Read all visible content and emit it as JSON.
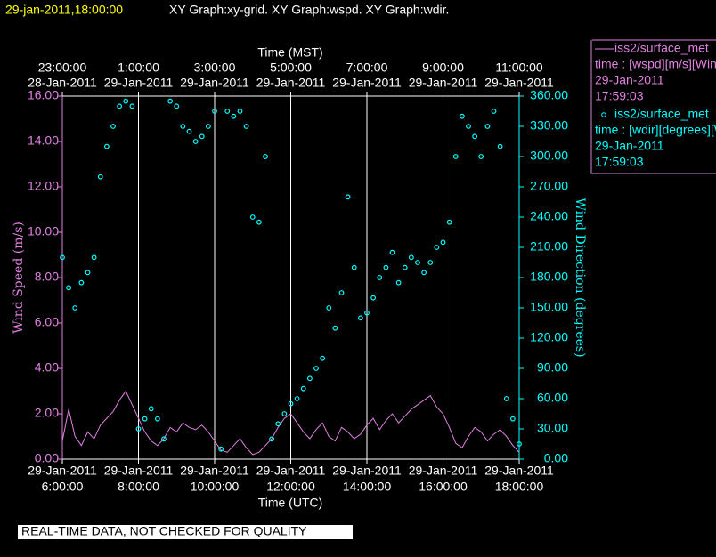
{
  "header": {
    "title_time": "29-jan-2011,18:00:00",
    "title_rest": "XY Graph:xy-grid.  XY Graph:wspd.  XY Graph:wdir."
  },
  "legend": {
    "entries": [
      {
        "name": "iss2/surface_met",
        "lines": [
          "time : [wspd][m/s][Wind",
          "29-Jan-2011",
          "17:59:03"
        ],
        "color": "#e080e0"
      },
      {
        "name": "iss2/surface_met",
        "lines": [
          "time : [wdir][degrees][W",
          "29-Jan-2011",
          "17:59:03"
        ],
        "color": "#00ffff"
      }
    ]
  },
  "footer": "REAL-TIME DATA, NOT CHECKED FOR QUALITY",
  "chart_data": {
    "type": "line",
    "xlabel": "Time (UTC)",
    "x2label": "Time (MST)",
    "ylabel": "Wind Speed (m/s)",
    "y2label": "Wind Direction (degrees)",
    "xlim": [
      "2011-01-29T06:00",
      "2011-01-29T18:00"
    ],
    "xticks": [
      {
        "value": "2011-01-29T06:00",
        "label": [
          "29-Jan-2011",
          "6:00:00"
        ]
      },
      {
        "value": "2011-01-29T08:00",
        "label": [
          "29-Jan-2011",
          "8:00:00"
        ]
      },
      {
        "value": "2011-01-29T10:00",
        "label": [
          "29-Jan-2011",
          "10:00:00"
        ]
      },
      {
        "value": "2011-01-29T12:00",
        "label": [
          "29-Jan-2011",
          "12:00:00"
        ]
      },
      {
        "value": "2011-01-29T14:00",
        "label": [
          "29-Jan-2011",
          "14:00:00"
        ]
      },
      {
        "value": "2011-01-29T16:00",
        "label": [
          "29-Jan-2011",
          "16:00:00"
        ]
      },
      {
        "value": "2011-01-29T18:00",
        "label": [
          "29-Jan-2011",
          "18:00:00"
        ]
      }
    ],
    "x2ticks": [
      {
        "value": "2011-01-29T06:00",
        "label": [
          "23:00:00",
          "28-Jan-2011"
        ]
      },
      {
        "value": "2011-01-29T08:00",
        "label": [
          "1:00:00",
          "29-Jan-2011"
        ]
      },
      {
        "value": "2011-01-29T10:00",
        "label": [
          "3:00:00",
          "29-Jan-2011"
        ]
      },
      {
        "value": "2011-01-29T12:00",
        "label": [
          "5:00:00",
          "29-Jan-2011"
        ]
      },
      {
        "value": "2011-01-29T14:00",
        "label": [
          "7:00:00",
          "29-Jan-2011"
        ]
      },
      {
        "value": "2011-01-29T16:00",
        "label": [
          "9:00:00",
          "29-Jan-2011"
        ]
      },
      {
        "value": "2011-01-29T18:00",
        "label": [
          "11:00:00",
          "29-Jan-2011"
        ]
      }
    ],
    "ylim": [
      0,
      16
    ],
    "yticks": [
      {
        "value": 0,
        "label": "0.00"
      },
      {
        "value": 2,
        "label": "2.00"
      },
      {
        "value": 4,
        "label": "4.00"
      },
      {
        "value": 6,
        "label": "6.00"
      },
      {
        "value": 8,
        "label": "8.00"
      },
      {
        "value": 10,
        "label": "10.00"
      },
      {
        "value": 12,
        "label": "12.00"
      },
      {
        "value": 14,
        "label": "14.00"
      },
      {
        "value": 16,
        "label": "16.00"
      }
    ],
    "y2lim": [
      0,
      360
    ],
    "y2ticks": [
      {
        "value": 0,
        "label": "0.00"
      },
      {
        "value": 30,
        "label": "30.00"
      },
      {
        "value": 60,
        "label": "60.00"
      },
      {
        "value": 90,
        "label": "90.00"
      },
      {
        "value": 120,
        "label": "120.00"
      },
      {
        "value": 150,
        "label": "150.00"
      },
      {
        "value": 180,
        "label": "180.00"
      },
      {
        "value": 210,
        "label": "210.00"
      },
      {
        "value": 240,
        "label": "240.00"
      },
      {
        "value": 270,
        "label": "270.00"
      },
      {
        "value": 300,
        "label": "300.00"
      },
      {
        "value": 330,
        "label": "330.00"
      },
      {
        "value": 360,
        "label": "360.00"
      }
    ],
    "grid": true,
    "x": [
      "2011-01-29T06:00",
      "2011-01-29T06:10",
      "2011-01-29T06:20",
      "2011-01-29T06:30",
      "2011-01-29T06:40",
      "2011-01-29T06:50",
      "2011-01-29T07:00",
      "2011-01-29T07:10",
      "2011-01-29T07:20",
      "2011-01-29T07:30",
      "2011-01-29T07:40",
      "2011-01-29T07:50",
      "2011-01-29T08:00",
      "2011-01-29T08:10",
      "2011-01-29T08:20",
      "2011-01-29T08:30",
      "2011-01-29T08:40",
      "2011-01-29T08:50",
      "2011-01-29T09:00",
      "2011-01-29T09:10",
      "2011-01-29T09:20",
      "2011-01-29T09:30",
      "2011-01-29T09:40",
      "2011-01-29T09:50",
      "2011-01-29T10:00",
      "2011-01-29T10:10",
      "2011-01-29T10:20",
      "2011-01-29T10:30",
      "2011-01-29T10:40",
      "2011-01-29T10:50",
      "2011-01-29T11:00",
      "2011-01-29T11:10",
      "2011-01-29T11:20",
      "2011-01-29T11:30",
      "2011-01-29T11:40",
      "2011-01-29T11:50",
      "2011-01-29T12:00",
      "2011-01-29T12:10",
      "2011-01-29T12:20",
      "2011-01-29T12:30",
      "2011-01-29T12:40",
      "2011-01-29T12:50",
      "2011-01-29T13:00",
      "2011-01-29T13:10",
      "2011-01-29T13:20",
      "2011-01-29T13:30",
      "2011-01-29T13:40",
      "2011-01-29T13:50",
      "2011-01-29T14:00",
      "2011-01-29T14:10",
      "2011-01-29T14:20",
      "2011-01-29T14:30",
      "2011-01-29T14:40",
      "2011-01-29T14:50",
      "2011-01-29T15:00",
      "2011-01-29T15:10",
      "2011-01-29T15:20",
      "2011-01-29T15:30",
      "2011-01-29T15:40",
      "2011-01-29T15:50",
      "2011-01-29T16:00",
      "2011-01-29T16:10",
      "2011-01-29T16:20",
      "2011-01-29T16:30",
      "2011-01-29T16:40",
      "2011-01-29T16:50",
      "2011-01-29T17:00",
      "2011-01-29T17:10",
      "2011-01-29T17:20",
      "2011-01-29T17:30",
      "2011-01-29T17:40",
      "2011-01-29T17:50",
      "2011-01-29T18:00"
    ],
    "series": [
      {
        "name": "iss2/surface_met",
        "type": "line",
        "color": "#e080e0",
        "values": [
          0.8,
          2.2,
          1.0,
          0.6,
          1.2,
          0.9,
          1.5,
          1.8,
          2.1,
          2.6,
          3.0,
          2.4,
          1.8,
          1.2,
          0.8,
          0.6,
          0.9,
          1.4,
          1.2,
          1.6,
          1.4,
          1.3,
          1.5,
          1.2,
          0.8,
          0.4,
          0.3,
          0.6,
          0.9,
          0.5,
          0.2,
          0.3,
          0.6,
          0.9,
          1.4,
          1.8,
          2.0,
          1.6,
          1.2,
          0.9,
          1.3,
          1.6,
          1.0,
          0.8,
          1.4,
          1.2,
          0.9,
          1.1,
          1.5,
          1.8,
          1.3,
          1.7,
          2.0,
          1.6,
          1.9,
          2.2,
          2.4,
          2.6,
          2.8,
          2.3,
          2.0,
          1.4,
          0.7,
          0.5,
          1.0,
          1.4,
          1.2,
          0.8,
          1.1,
          1.3,
          1.0,
          0.6,
          0.3
        ]
      },
      {
        "name": "iss2/surface_met",
        "type": "scatter",
        "axis": "y2",
        "color": "#00ffff",
        "values": [
          200,
          170,
          150,
          175,
          185,
          200,
          280,
          310,
          330,
          350,
          355,
          350,
          30,
          40,
          50,
          40,
          20,
          355,
          350,
          330,
          325,
          315,
          320,
          330,
          345,
          10,
          345,
          340,
          345,
          330,
          240,
          235,
          300,
          20,
          35,
          45,
          55,
          60,
          70,
          80,
          90,
          100,
          150,
          130,
          165,
          260,
          190,
          140,
          145,
          160,
          180,
          190,
          205,
          175,
          190,
          200,
          195,
          185,
          195,
          210,
          215,
          235,
          300,
          340,
          330,
          320,
          300,
          330,
          345,
          310,
          60,
          40,
          15
        ]
      }
    ]
  }
}
